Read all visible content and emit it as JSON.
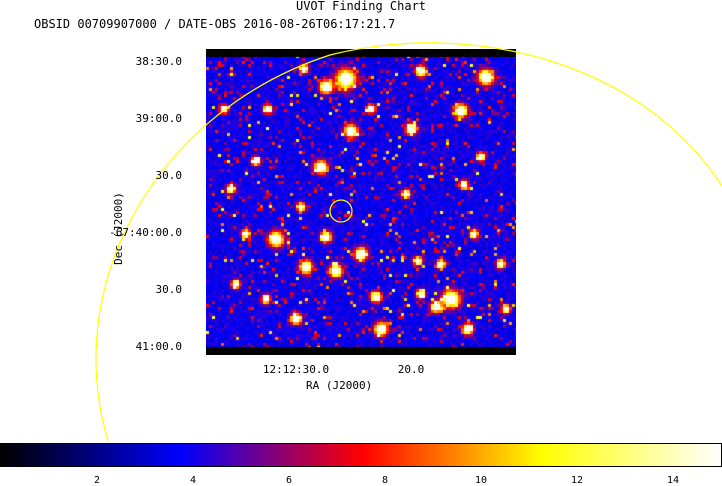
{
  "chart_data": {
    "type": "heatmap",
    "title": "UVOT Finding Chart",
    "subtitle": "OBSID 00709907000 / DATE-OBS 2016-08-26T06:17:21.7",
    "xlabel": "RA (J2000)",
    "ylabel": "Dec (J2000)",
    "x_ticks": [
      "12:12:30.0",
      "20.0"
    ],
    "y_ticks": [
      "38:30.0",
      "39:00.0",
      "30.0",
      "-67:40:00.0",
      "30.0",
      "41:00.0"
    ],
    "colorbar": {
      "min": 0,
      "max": 15,
      "ticks": [
        2,
        4,
        6,
        8,
        10,
        12,
        14
      ],
      "colors": [
        "#000000",
        "#0000ff",
        "#ff0000",
        "#ffff00",
        "#ffffff"
      ]
    },
    "colors": {
      "background": "#0000c8",
      "overlay": "#ffff00"
    }
  }
}
